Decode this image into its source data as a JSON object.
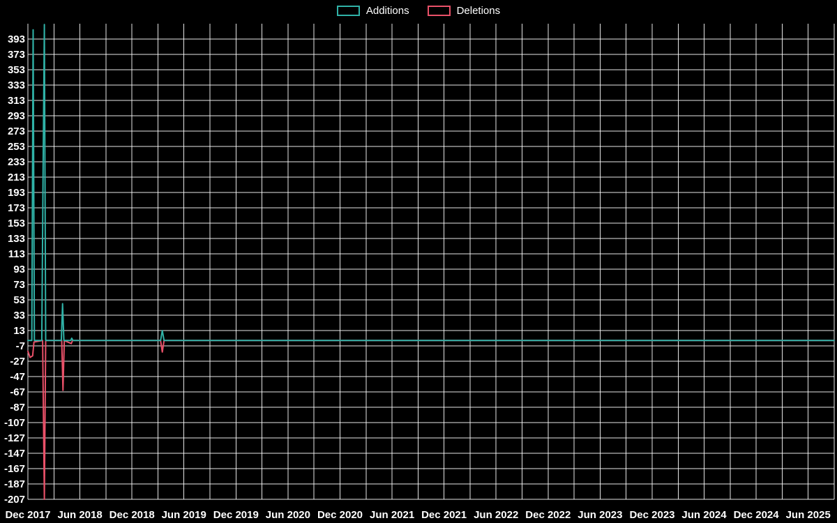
{
  "legend": {
    "items": [
      {
        "label": "Additions",
        "color": "#30b2a7"
      },
      {
        "label": "Deletions",
        "color": "#ea5169"
      }
    ]
  },
  "chart_data": {
    "type": "line",
    "title": "",
    "background_color": "#000000",
    "grid_color": "#ffffff",
    "text_color": "#ffffff",
    "legend_position": "top-center",
    "x_axis": {
      "unit": "months since Dec 2017",
      "range_months": [
        0,
        93
      ],
      "gridline_interval_months": 3,
      "tick_positions_months": [
        0,
        6,
        12,
        18,
        24,
        30,
        36,
        42,
        48,
        54,
        60,
        66,
        72,
        78,
        84,
        90
      ],
      "tick_labels": [
        "Dec 2017",
        "Jun 2018",
        "Dec 2018",
        "Jun 2019",
        "Dec 2019",
        "Jun 2020",
        "Dec 2020",
        "Jun 2021",
        "Dec 2021",
        "Jun 2022",
        "Dec 2022",
        "Jun 2023",
        "Dec 2023",
        "Jun 2024",
        "Dec 2024",
        "Jun 2025"
      ]
    },
    "y_axis": {
      "range": [
        -207,
        413
      ],
      "tick_values": [
        393,
        373,
        353,
        333,
        313,
        293,
        273,
        253,
        233,
        213,
        193,
        173,
        153,
        133,
        113,
        93,
        73,
        53,
        33,
        13,
        -7,
        -27,
        -47,
        -67,
        -87,
        -107,
        -127,
        -147,
        -167,
        -187,
        -207
      ]
    },
    "series": [
      {
        "name": "Additions",
        "color": "#30b2a7",
        "points": [
          [
            0,
            0
          ],
          [
            0.45,
            0
          ],
          [
            0.6,
            405
          ],
          [
            0.75,
            0
          ],
          [
            1.6,
            0
          ],
          [
            1.75,
            223
          ],
          [
            1.9,
            412
          ],
          [
            2.05,
            0
          ],
          [
            3.85,
            0
          ],
          [
            4.0,
            48
          ],
          [
            4.15,
            0
          ],
          [
            4.95,
            0
          ],
          [
            5.05,
            3
          ],
          [
            5.2,
            0
          ],
          [
            15.3,
            0
          ],
          [
            15.5,
            13
          ],
          [
            15.7,
            0
          ],
          [
            93,
            0
          ]
        ]
      },
      {
        "name": "Deletions",
        "color": "#ea5169",
        "points": [
          [
            0,
            -14
          ],
          [
            0.25,
            -22
          ],
          [
            0.55,
            -20
          ],
          [
            0.7,
            -2
          ],
          [
            1.7,
            0
          ],
          [
            1.9,
            -207
          ],
          [
            2.05,
            0
          ],
          [
            3.9,
            0
          ],
          [
            4.05,
            -65
          ],
          [
            4.2,
            0
          ],
          [
            5.0,
            -4
          ],
          [
            5.15,
            0
          ],
          [
            15.3,
            0
          ],
          [
            15.5,
            -15
          ],
          [
            15.7,
            0
          ],
          [
            93,
            0
          ]
        ]
      }
    ]
  }
}
